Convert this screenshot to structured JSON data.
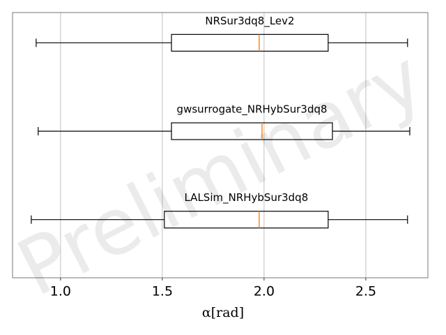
{
  "chart_data": {
    "type": "boxplot",
    "orientation": "horizontal",
    "x_label": "α[rad]",
    "watermark": "Preliminary",
    "boxes": [
      {
        "label": "NRSur3dq8_Lev2",
        "min": 0.88,
        "q1": 1.545,
        "median": 1.976,
        "q3": 2.315,
        "max": 2.705
      },
      {
        "label": "gwsurrogate_NRHybSur3dq8",
        "min": 0.89,
        "q1": 1.545,
        "median": 1.99,
        "q3": 2.336,
        "max": 2.716
      },
      {
        "label": "LALSim_NRHybSur3dq8",
        "min": 0.856,
        "q1": 1.51,
        "median": 1.976,
        "q3": 2.315,
        "max": 2.705
      }
    ],
    "box_color": "#000000",
    "median_color": "#ff7f0e",
    "xlim": [
      0.764,
      2.805
    ],
    "xticks": [
      {
        "value": 1,
        "label": "1.0"
      },
      {
        "value": 1.5,
        "label": "1.5"
      },
      {
        "value": 2,
        "label": "2.0"
      },
      {
        "value": 2.5,
        "label": "2.5"
      }
    ],
    "grid": true
  }
}
